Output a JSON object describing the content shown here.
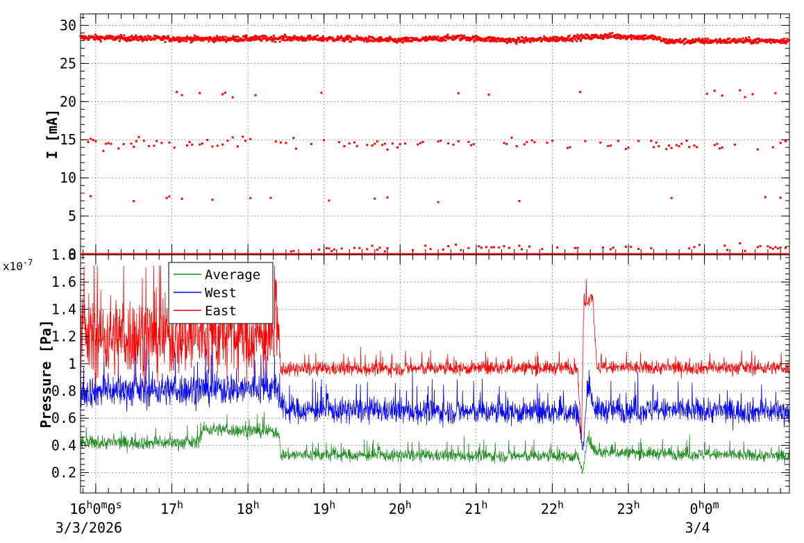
{
  "chart_data": [
    {
      "type": "scatter",
      "panel": "current",
      "ylabel": "I [mA]",
      "ylim": [
        0,
        31.5
      ],
      "y_ticks": [
        {
          "value": 0,
          "label": "0"
        },
        {
          "value": 5,
          "label": "5"
        },
        {
          "value": 10,
          "label": "10"
        },
        {
          "value": 15,
          "label": "15"
        },
        {
          "value": 20,
          "label": "20"
        },
        {
          "value": 25,
          "label": "25"
        },
        {
          "value": 30,
          "label": "30"
        }
      ],
      "grid": true,
      "series": [
        {
          "color": "#ff0000",
          "x_range": [
            "2026-03-03 15:48",
            "2026-03-04 01:07"
          ],
          "bands": [
            {
              "value": 28.3,
              "description_free": true
            },
            {
              "value": 21.0
            },
            {
              "value": 14.5
            },
            {
              "value": 7.3
            },
            {
              "value": 0.8
            },
            {
              "value": 0.0
            }
          ],
          "profile": [
            {
              "x": "2026-03-03 15:48",
              "y": 28.4
            },
            {
              "x": "2026-03-03 16:30",
              "y": 28.3
            },
            {
              "x": "2026-03-03 17:30",
              "y": 28.2
            },
            {
              "x": "2026-03-03 18:30",
              "y": 28.3
            },
            {
              "x": "2026-03-03 19:30",
              "y": 28.2
            },
            {
              "x": "2026-03-03 20:00",
              "y": 28.0
            },
            {
              "x": "2026-03-03 20:45",
              "y": 28.4
            },
            {
              "x": "2026-03-03 21:30",
              "y": 28.0
            },
            {
              "x": "2026-03-03 22:00",
              "y": 28.2
            },
            {
              "x": "2026-03-03 22:45",
              "y": 28.6
            },
            {
              "x": "2026-03-03 23:20",
              "y": 28.4
            },
            {
              "x": "2026-03-03 23:30",
              "y": 27.9
            },
            {
              "x": "2026-03-04 01:07",
              "y": 28.0
            }
          ]
        }
      ]
    },
    {
      "type": "line",
      "panel": "pressure",
      "ylabel": "Pressure [Pa]",
      "y_exponent": "x10",
      "y_exponent_power": "-7",
      "ylim": [
        0.05,
        1.8
      ],
      "y_ticks": [
        {
          "value": 0.2,
          "label": "0.2"
        },
        {
          "value": 0.4,
          "label": "0.4"
        },
        {
          "value": 0.6,
          "label": "0.6"
        },
        {
          "value": 0.8,
          "label": "0.8"
        },
        {
          "value": 1.0,
          "label": "1"
        },
        {
          "value": 1.2,
          "label": "1.2"
        },
        {
          "value": 1.4,
          "label": "1.4"
        },
        {
          "value": 1.6,
          "label": "1.6"
        },
        {
          "value": 1.8,
          "label": "1.8"
        }
      ],
      "grid": true,
      "legend_position": "top-left",
      "series": [
        {
          "name": "Average",
          "color": "#228b22",
          "data": [
            {
              "x": "2026-03-03 15:48",
              "y": 0.42,
              "noise": 0.05
            },
            {
              "x": "2026-03-03 17:20",
              "y": 0.42,
              "noise": 0.05
            },
            {
              "x": "2026-03-03 17:25",
              "y": 0.52,
              "noise": 0.05
            },
            {
              "x": "2026-03-03 18:24",
              "y": 0.5,
              "noise": 0.05
            },
            {
              "x": "2026-03-03 18:26",
              "y": 0.33,
              "noise": 0.045
            },
            {
              "x": "2026-03-03 22:20",
              "y": 0.32,
              "noise": 0.045
            },
            {
              "x": "2026-03-03 22:24",
              "y": 0.2,
              "noise": 0.03
            },
            {
              "x": "2026-03-03 22:28",
              "y": 0.45,
              "noise": 0.03
            },
            {
              "x": "2026-03-03 22:34",
              "y": 0.35,
              "noise": 0.045
            },
            {
              "x": "2026-03-04 01:07",
              "y": 0.32,
              "noise": 0.045
            }
          ]
        },
        {
          "name": "West",
          "color": "#0000ff",
          "data": [
            {
              "x": "2026-03-03 15:48",
              "y": 0.8,
              "noise": 0.12
            },
            {
              "x": "2026-03-03 18:24",
              "y": 0.82,
              "noise": 0.12
            },
            {
              "x": "2026-03-03 18:26",
              "y": 0.66,
              "noise": 0.09
            },
            {
              "x": "2026-03-03 22:20",
              "y": 0.64,
              "noise": 0.09
            },
            {
              "x": "2026-03-03 22:24",
              "y": 0.35,
              "noise": 0.05
            },
            {
              "x": "2026-03-03 22:28",
              "y": 0.85,
              "noise": 0.05
            },
            {
              "x": "2026-03-03 22:34",
              "y": 0.66,
              "noise": 0.09
            },
            {
              "x": "2026-03-04 01:07",
              "y": 0.65,
              "noise": 0.09
            }
          ]
        },
        {
          "name": "East",
          "color": "#ff0000",
          "data": [
            {
              "x": "2026-03-03 15:48",
              "y": 1.2,
              "noise": 0.3
            },
            {
              "x": "2026-03-03 18:24",
              "y": 1.2,
              "noise": 0.3
            },
            {
              "x": "2026-03-03 18:26",
              "y": 0.96,
              "noise": 0.05
            },
            {
              "x": "2026-03-03 22:20",
              "y": 0.97,
              "noise": 0.05
            },
            {
              "x": "2026-03-03 22:23",
              "y": 0.45,
              "noise": 0.05
            },
            {
              "x": "2026-03-03 22:25",
              "y": 1.45,
              "noise": 0.05
            },
            {
              "x": "2026-03-03 22:32",
              "y": 1.5,
              "noise": 0.05
            },
            {
              "x": "2026-03-03 22:35",
              "y": 0.97,
              "noise": 0.05
            },
            {
              "x": "2026-03-04 01:07",
              "y": 0.97,
              "noise": 0.05
            }
          ]
        }
      ]
    }
  ],
  "time_axis": {
    "range": [
      "2026-03-03 15:48",
      "2026-03-04 01:07"
    ],
    "major_ticks": [
      {
        "t": "2026-03-03 16:00",
        "base": "16",
        "sup1": "h",
        "mid": "0",
        "sup2": "m",
        "mid2": "0",
        "sup3": "s"
      },
      {
        "t": "2026-03-03 17:00",
        "base": "17",
        "sup1": "h"
      },
      {
        "t": "2026-03-03 18:00",
        "base": "18",
        "sup1": "h"
      },
      {
        "t": "2026-03-03 19:00",
        "base": "19",
        "sup1": "h"
      },
      {
        "t": "2026-03-03 20:00",
        "base": "20",
        "sup1": "h"
      },
      {
        "t": "2026-03-03 21:00",
        "base": "21",
        "sup1": "h"
      },
      {
        "t": "2026-03-03 22:00",
        "base": "22",
        "sup1": "h"
      },
      {
        "t": "2026-03-03 23:00",
        "base": "23",
        "sup1": "h"
      },
      {
        "t": "2026-03-04 00:00",
        "base": "0",
        "sup1": "h",
        "mid": "0",
        "sup2": "m"
      }
    ],
    "dates": [
      {
        "t": "2026-03-03 16:00",
        "label": "3/3/2026"
      },
      {
        "t": "2026-03-04 00:00",
        "label": "3/4"
      }
    ]
  }
}
